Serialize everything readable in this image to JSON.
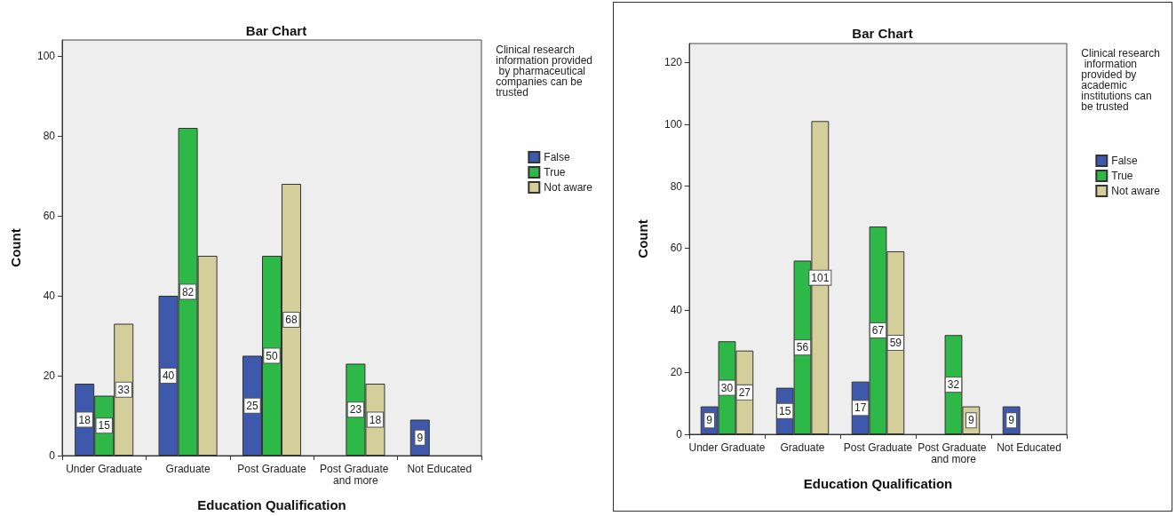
{
  "chart_data": [
    {
      "type": "bar",
      "title": "Bar Chart",
      "xlabel": "Education Qualification",
      "ylabel": "Count",
      "legend_title": "Clinical research information provided by pharmaceutical companies can be trusted",
      "categories": [
        "Under Graduate",
        "Graduate",
        "Post Graduate",
        "Post Graduate and more",
        "Not Educated"
      ],
      "series": [
        {
          "name": "False",
          "color": "#3e58ac",
          "values": [
            18,
            40,
            25,
            null,
            9
          ]
        },
        {
          "name": "True",
          "color": "#2eb848",
          "values": [
            15,
            82,
            50,
            23,
            null
          ]
        },
        {
          "name": "Not aware",
          "color": "#d4cf9a",
          "values": [
            33,
            50,
            68,
            18,
            null
          ]
        }
      ],
      "value_labels": [
        [
          "18",
          "40",
          "25",
          null,
          "9"
        ],
        [
          "15",
          "82",
          "50",
          "23",
          null
        ],
        [
          "33",
          null,
          "68",
          "18",
          null
        ]
      ],
      "ylim": [
        0,
        104
      ],
      "yticks": [
        0,
        20,
        40,
        60,
        80,
        100
      ],
      "grid": false,
      "legend": "right"
    },
    {
      "type": "bar",
      "title": "Bar Chart",
      "xlabel": "Education Qualification",
      "ylabel": "Count",
      "legend_title": "Clinical research information provided by academic institutions can be trusted",
      "categories": [
        "Under Graduate",
        "Graduate",
        "Post Graduate",
        "Post Graduate and more",
        "Not Educated"
      ],
      "series": [
        {
          "name": "False",
          "color": "#3e58ac",
          "values": [
            9,
            15,
            17,
            null,
            9
          ]
        },
        {
          "name": "True",
          "color": "#2eb848",
          "values": [
            30,
            56,
            67,
            32,
            null
          ]
        },
        {
          "name": "Not aware",
          "color": "#d4cf9a",
          "values": [
            27,
            101,
            59,
            9,
            null
          ]
        }
      ],
      "data_labels": true,
      "ylim": [
        0,
        126
      ],
      "yticks": [
        0,
        20,
        40,
        60,
        80,
        100,
        120
      ],
      "grid": false,
      "legend": "right"
    }
  ]
}
